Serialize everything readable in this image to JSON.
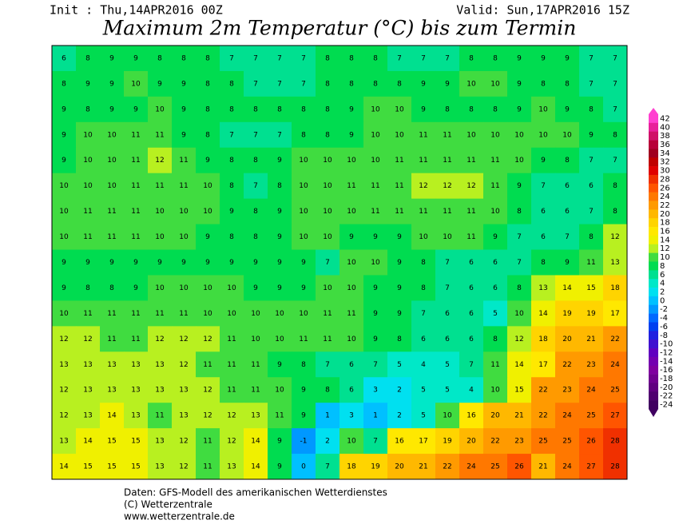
{
  "header": {
    "init": "Init : Thu,14APR2016 00Z",
    "valid": "Valid: Sun,17APR2016 15Z",
    "title": "Maximum 2m Temperatur (°C) bis zum Termin"
  },
  "footer": {
    "line1": "Daten: GFS-Modell des amerikanischen Wetterdienstes",
    "line2": "(C) Wetterzentrale",
    "line3": "www.wetterzentrale.de"
  },
  "colorbar": {
    "levels": [
      42,
      40,
      38,
      36,
      34,
      32,
      30,
      28,
      26,
      24,
      22,
      20,
      18,
      16,
      14,
      12,
      10,
      8,
      6,
      4,
      2,
      0,
      -2,
      -4,
      -6,
      -8,
      -10,
      -12,
      -14,
      -16,
      -18,
      -20,
      -22,
      -24
    ],
    "colors": [
      "#ff40d0",
      "#e8209a",
      "#d01068",
      "#b80038",
      "#a00020",
      "#c00000",
      "#e00000",
      "#f03000",
      "#ff5500",
      "#ff7800",
      "#ff9a00",
      "#ffb800",
      "#ffd400",
      "#ffe800",
      "#f0f000",
      "#b8f020",
      "#40dc40",
      "#00dc50",
      "#00e090",
      "#00e8c8",
      "#00e0f0",
      "#00c0ff",
      "#0098ff",
      "#0068ff",
      "#0040f0",
      "#2020e0",
      "#4010d0",
      "#6000c0",
      "#7400b0",
      "#8000a0",
      "#700090",
      "#600080",
      "#500070",
      "#400060"
    ]
  },
  "map": {
    "grid": [
      [
        6,
        8,
        9,
        9,
        8,
        8,
        8,
        7,
        7,
        7,
        7,
        8,
        8,
        8,
        7,
        7,
        7,
        8,
        8,
        9,
        9,
        9,
        7,
        7
      ],
      [
        8,
        9,
        9,
        10,
        9,
        9,
        8,
        8,
        7,
        7,
        7,
        8,
        8,
        8,
        8,
        9,
        9,
        10,
        10,
        9,
        8,
        8,
        7,
        7
      ],
      [
        9,
        8,
        9,
        9,
        10,
        9,
        8,
        8,
        8,
        8,
        8,
        8,
        9,
        10,
        10,
        9,
        8,
        8,
        8,
        9,
        10,
        9,
        8,
        7
      ],
      [
        9,
        10,
        10,
        11,
        11,
        9,
        8,
        7,
        7,
        7,
        8,
        8,
        9,
        10,
        10,
        11,
        11,
        10,
        10,
        10,
        10,
        10,
        9,
        8
      ],
      [
        9,
        10,
        10,
        11,
        12,
        11,
        9,
        8,
        8,
        9,
        10,
        10,
        10,
        10,
        11,
        11,
        11,
        11,
        11,
        10,
        9,
        8,
        7,
        7
      ],
      [
        10,
        10,
        10,
        11,
        11,
        11,
        10,
        8,
        7,
        8,
        10,
        10,
        11,
        11,
        11,
        12,
        12,
        12,
        11,
        9,
        7,
        6,
        6,
        8
      ],
      [
        10,
        11,
        11,
        11,
        10,
        10,
        10,
        9,
        8,
        9,
        10,
        10,
        10,
        11,
        11,
        11,
        11,
        11,
        10,
        8,
        6,
        6,
        7,
        8
      ],
      [
        10,
        11,
        11,
        11,
        10,
        10,
        9,
        8,
        8,
        9,
        10,
        10,
        9,
        9,
        9,
        10,
        10,
        11,
        9,
        7,
        6,
        7,
        8,
        12
      ],
      [
        9,
        9,
        9,
        9,
        9,
        9,
        9,
        9,
        9,
        9,
        9,
        7,
        10,
        10,
        9,
        8,
        7,
        6,
        6,
        7,
        8,
        9,
        11,
        13
      ],
      [
        9,
        8,
        8,
        9,
        10,
        10,
        10,
        10,
        9,
        9,
        9,
        10,
        10,
        9,
        9,
        8,
        7,
        6,
        6,
        8,
        13,
        14,
        15,
        18
      ],
      [
        10,
        11,
        11,
        11,
        11,
        11,
        10,
        10,
        10,
        10,
        10,
        11,
        11,
        9,
        9,
        7,
        6,
        6,
        5,
        10,
        14,
        19,
        19,
        17
      ],
      [
        12,
        12,
        11,
        11,
        12,
        12,
        12,
        11,
        10,
        10,
        11,
        11,
        10,
        9,
        8,
        6,
        6,
        6,
        8,
        12,
        18,
        20,
        21,
        22
      ],
      [
        13,
        13,
        13,
        13,
        13,
        12,
        11,
        11,
        11,
        9,
        8,
        7,
        6,
        7,
        5,
        4,
        5,
        7,
        11,
        14,
        17,
        22,
        23,
        24
      ],
      [
        12,
        13,
        13,
        13,
        13,
        13,
        12,
        11,
        11,
        10,
        9,
        8,
        6,
        3,
        2,
        5,
        5,
        4,
        10,
        15,
        22,
        23,
        24,
        25
      ],
      [
        12,
        13,
        14,
        13,
        11,
        13,
        12,
        12,
        13,
        11,
        9,
        1,
        3,
        1,
        2,
        5,
        10,
        16,
        20,
        21,
        22,
        24,
        25,
        27
      ],
      [
        13,
        14,
        15,
        15,
        13,
        12,
        11,
        12,
        14,
        9,
        -1,
        2,
        10,
        7,
        16,
        17,
        19,
        20,
        22,
        23,
        25,
        25,
        26,
        28
      ],
      [
        14,
        15,
        15,
        15,
        13,
        12,
        11,
        13,
        14,
        9,
        0,
        7,
        18,
        19,
        20,
        21,
        22,
        24,
        25,
        26,
        21,
        24,
        27,
        28
      ]
    ]
  }
}
